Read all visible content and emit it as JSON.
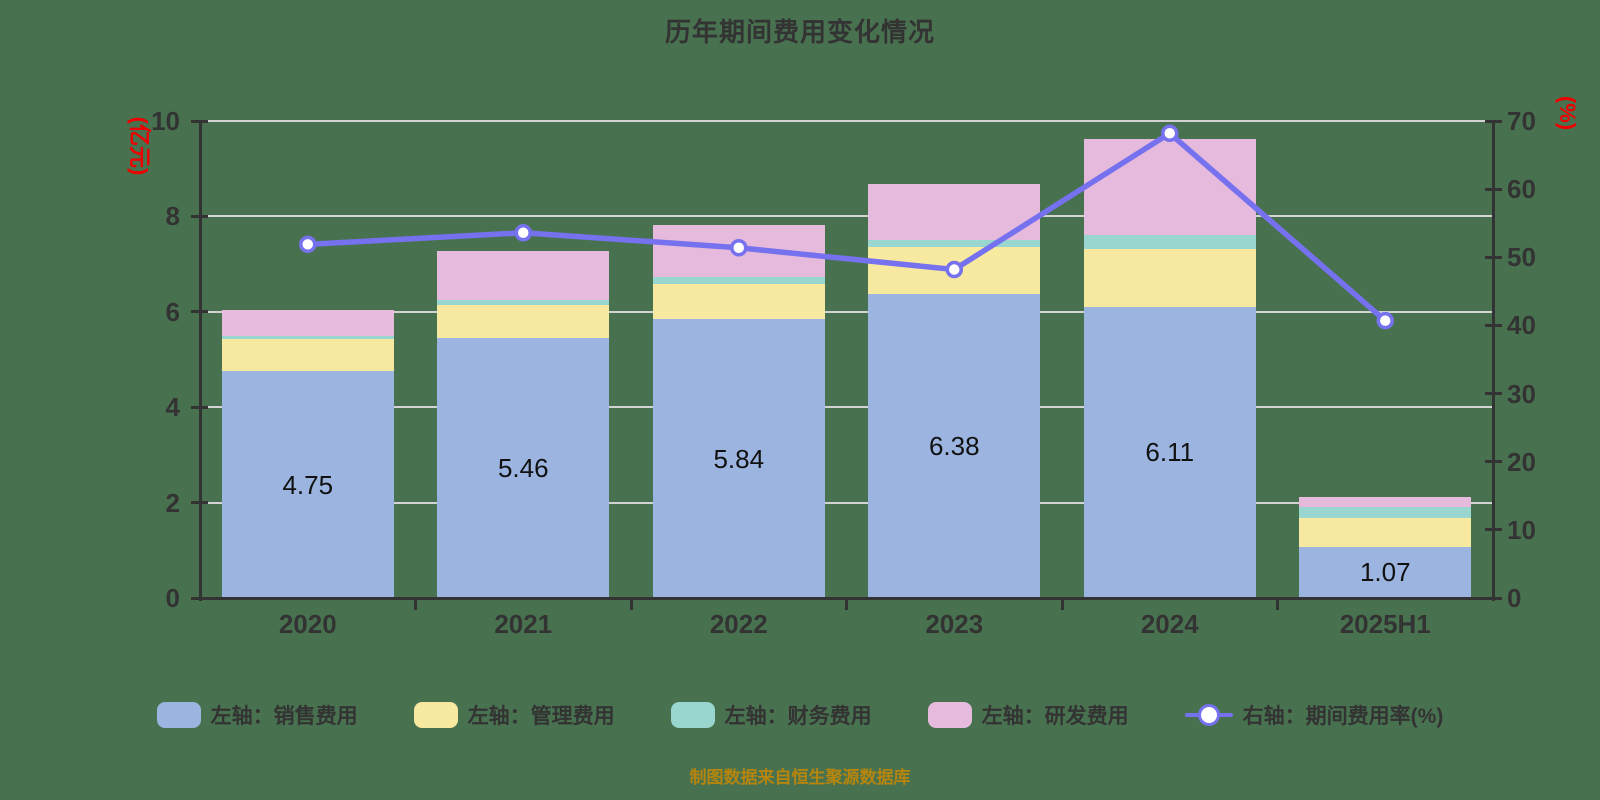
{
  "title": "历年期间费用变化情况",
  "footer": "制图数据来自恒生聚源数据库",
  "colors": {
    "background": "#48724F",
    "axis": "#333333",
    "gridline": "#D3D3D3",
    "tick_text": "#333333",
    "unit_text": "#EE0000",
    "bar_label_text": "#111111",
    "title_text": "#333333",
    "legend_text": "#333333",
    "footer_text": "#B5850E",
    "line": "#7671EE",
    "marker_fill": "#FFFFFF"
  },
  "chart_data": {
    "type": "combo (stacked bar + line)",
    "categories": [
      "2020",
      "2021",
      "2022",
      "2023",
      "2024",
      "2025H1"
    ],
    "series": [
      {
        "key": "sales",
        "name": "左轴：销售费用",
        "type": "bar",
        "color": "#9BB5E0",
        "labeled": true,
        "values": [
          4.75,
          5.46,
          5.84,
          6.38,
          6.11,
          1.07
        ]
      },
      {
        "key": "admin",
        "name": "左轴：管理费用",
        "type": "bar",
        "color": "#F8E9A1",
        "values": [
          0.67,
          0.68,
          0.74,
          0.98,
          1.21,
          0.6
        ]
      },
      {
        "key": "finance",
        "name": "左轴：财务费用",
        "type": "bar",
        "color": "#99D6CF",
        "values": [
          0.07,
          0.1,
          0.14,
          0.15,
          0.28,
          0.24
        ]
      },
      {
        "key": "rd",
        "name": "左轴：研发费用",
        "type": "bar",
        "color": "#E6BADC",
        "values": [
          0.55,
          1.03,
          1.11,
          1.17,
          2.03,
          0.2
        ]
      },
      {
        "key": "rate",
        "name": "右轴：期间费用率(%)",
        "type": "line",
        "axis": "right",
        "color": "#7671EE",
        "values": [
          51.9,
          53.6,
          51.4,
          48.2,
          68.2,
          40.7
        ]
      }
    ],
    "bar_labels": [
      "4.75",
      "5.46",
      "5.84",
      "6.38",
      "6.11",
      "1.07"
    ],
    "left_axis": {
      "label": "(亿元)",
      "min": 0,
      "max": 10,
      "ticks": [
        0,
        2,
        4,
        6,
        8,
        10
      ]
    },
    "right_axis": {
      "label": "(%)",
      "min": 0,
      "max": 70,
      "ticks": [
        0,
        10,
        20,
        30,
        40,
        50,
        60,
        70
      ]
    },
    "grid": "horizontal, left-axis steps",
    "legend_position": "bottom-center"
  }
}
